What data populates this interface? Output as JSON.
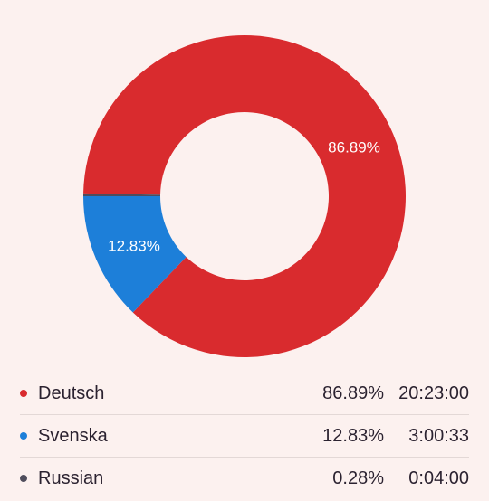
{
  "chart_data": {
    "type": "pie",
    "variant": "donut",
    "slices": [
      {
        "label": "Deutsch",
        "percent": 86.89,
        "percent_text": "86.89%",
        "time": "20:23:00",
        "color": "#d92b2e",
        "show_label": true
      },
      {
        "label": "Svenska",
        "percent": 12.83,
        "percent_text": "12.83%",
        "time": "3:00:33",
        "color": "#1d7fd9",
        "show_label": true
      },
      {
        "label": "Russian",
        "percent": 0.28,
        "percent_text": "0.28%",
        "time": "0:04:00",
        "color": "#4f4d5c",
        "show_label": false
      }
    ],
    "start_angle_deg": 0,
    "direction": "clockwise",
    "legend_position": "bottom"
  },
  "colors": {
    "background": "#fcf1ef",
    "text": "#2b2230",
    "divider": "#e3d8d6"
  }
}
